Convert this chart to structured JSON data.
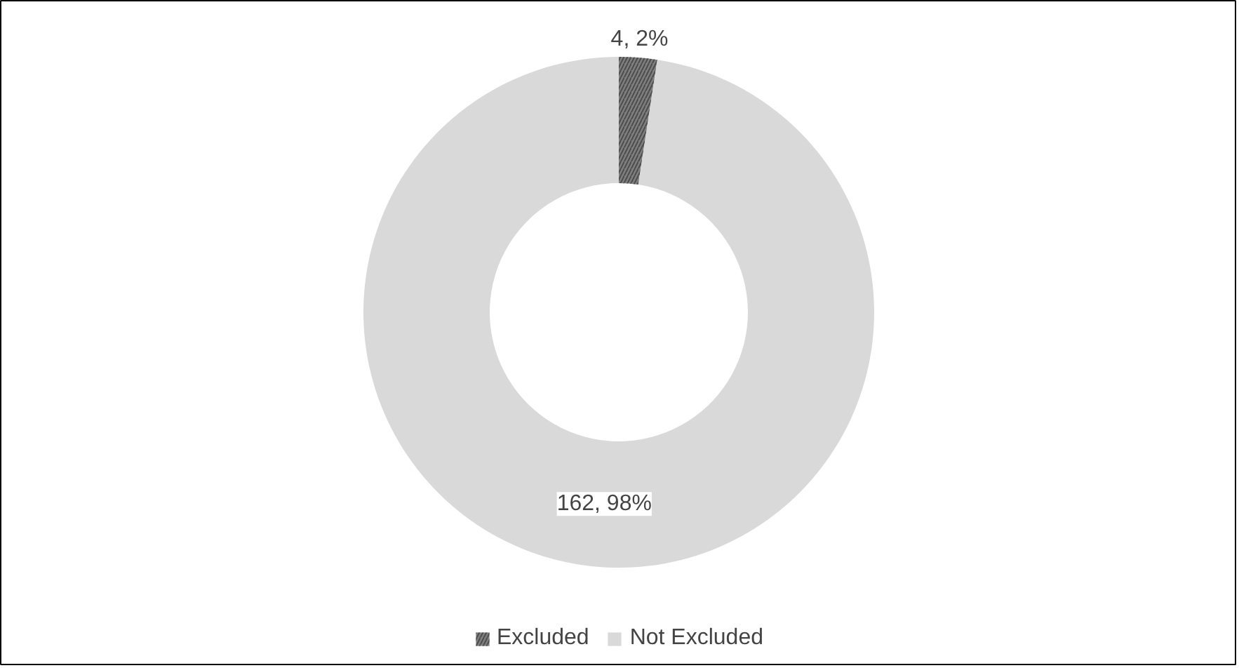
{
  "chart_data": {
    "type": "donut",
    "categories": [
      "Excluded",
      "Not Excluded"
    ],
    "values": [
      4,
      162
    ],
    "colors": [
      "#7f7f7f",
      "#d9d9d9"
    ],
    "value_labels": [
      "4, 2%",
      "162, 98%"
    ],
    "legend": "bottom"
  }
}
